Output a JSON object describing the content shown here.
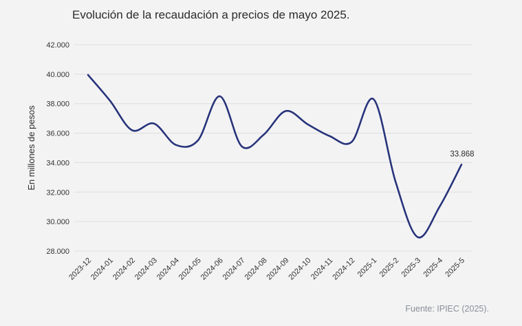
{
  "chart_data": {
    "type": "line",
    "title": "Evolución de la recaudación a precios de mayo 2025.",
    "ylabel": "En millones de pesos",
    "xlabel": "",
    "ylim": [
      28000,
      42000
    ],
    "yticks": [
      28000,
      30000,
      32000,
      34000,
      36000,
      38000,
      40000,
      42000
    ],
    "ytick_labels": [
      "28.000",
      "30.000",
      "32.000",
      "34.000",
      "36.000",
      "38.000",
      "40.000",
      "42.000"
    ],
    "categories": [
      "2023-12",
      "2024-01",
      "2024-02",
      "2024-03",
      "2024-04",
      "2024-05",
      "2024-06",
      "2024-07",
      "2024-08",
      "2024-09",
      "2024-10",
      "2024-11",
      "2024-12",
      "2025-1",
      "2025-2",
      "2025-3",
      "2025-4",
      "2025-5"
    ],
    "series": [
      {
        "values": [
          39950,
          38200,
          36200,
          36650,
          35200,
          35500,
          38500,
          35100,
          35900,
          37500,
          36600,
          35800,
          35400,
          38300,
          32700,
          28950,
          31000,
          33868
        ],
        "color": "#27337a"
      }
    ],
    "annotations": [
      {
        "index": 17,
        "text": "33.868"
      }
    ],
    "grid": true,
    "legend": "none",
    "source": "Fuente: IPIEC (2025)."
  }
}
